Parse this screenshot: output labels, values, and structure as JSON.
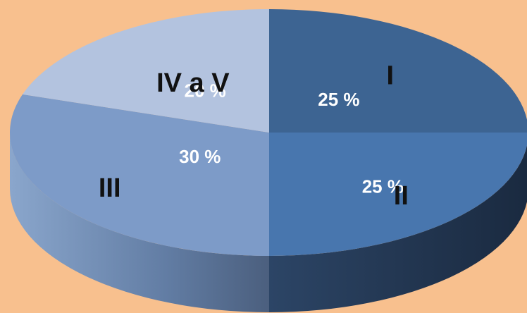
{
  "chart_data": {
    "type": "pie",
    "title": "",
    "three_d": true,
    "slices": [
      {
        "label": "I",
        "value_label": "25 %",
        "value": 25,
        "color": "#3d6492"
      },
      {
        "label": "II",
        "value_label": "25 %",
        "value": 25,
        "color": "#4876ae"
      },
      {
        "label": "III",
        "value_label": "30 %",
        "value": 30,
        "color": "#7d9bc8"
      },
      {
        "label": "IV a V",
        "value_label": "20 %",
        "value": 20,
        "color": "#b3c3df"
      }
    ]
  },
  "colors": {
    "background": "#f8c08e"
  }
}
